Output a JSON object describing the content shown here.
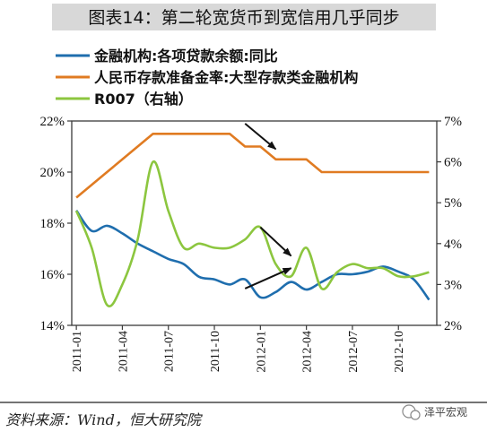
{
  "figure_title": "图表14：第二轮宽货币到宽信用几乎同步",
  "source": "资料来源：Wind，恒大研究院",
  "watermark": "泽平宏观",
  "colors": {
    "loan_growth": "#1f6eae",
    "rrr": "#e07b22",
    "r007": "#8cc63f",
    "title_bar": "#d8d8d8",
    "frame": "#3a3a3a"
  },
  "chart_data": {
    "type": "line",
    "legend": [
      "金融机构:各项贷款余额:同比",
      "人民币存款准备金率:大型存款类金融机构",
      "R007（右轴）"
    ],
    "legend_placement": "top",
    "x_start": "2011-01",
    "x_end": "2012-12",
    "x_ticks": [
      "2011-01",
      "2011-04",
      "2011-07",
      "2011-10",
      "2012-01",
      "2012-04",
      "2012-07",
      "2012-10"
    ],
    "y_left": {
      "lim": [
        14,
        22
      ],
      "ticks": [
        "14%",
        "16%",
        "18%",
        "20%",
        "22%"
      ]
    },
    "y_right": {
      "lim": [
        2,
        7
      ],
      "ticks": [
        "2%",
        "3%",
        "4%",
        "5%",
        "6%",
        "7%"
      ]
    },
    "grid": false,
    "series": [
      {
        "name": "金融机构:各项贷款余额:同比",
        "axis": "left",
        "x": [
          "2011-01",
          "2011-02",
          "2011-03",
          "2011-04",
          "2011-05",
          "2011-06",
          "2011-07",
          "2011-08",
          "2011-09",
          "2011-10",
          "2011-11",
          "2011-12",
          "2012-01",
          "2012-02",
          "2012-03",
          "2012-04",
          "2012-05",
          "2012-06",
          "2012-07",
          "2012-08",
          "2012-09",
          "2012-10",
          "2012-11",
          "2012-12"
        ],
        "y": [
          18.5,
          17.7,
          17.9,
          17.6,
          17.2,
          16.9,
          16.6,
          16.4,
          15.9,
          15.8,
          15.6,
          15.8,
          15.1,
          15.3,
          15.7,
          15.4,
          15.7,
          16.0,
          16.0,
          16.1,
          16.3,
          16.1,
          15.8,
          15.0
        ]
      },
      {
        "name": "人民币存款准备金率:大型存款类金融机构",
        "axis": "left",
        "x": [
          "2011-01",
          "2011-02",
          "2011-03",
          "2011-04",
          "2011-05",
          "2011-06",
          "2011-07",
          "2011-08",
          "2011-09",
          "2011-10",
          "2011-11",
          "2011-12",
          "2012-01",
          "2012-02",
          "2012-03",
          "2012-04",
          "2012-05",
          "2012-06",
          "2012-07",
          "2012-08",
          "2012-09",
          "2012-10",
          "2012-11",
          "2012-12"
        ],
        "y": [
          19.0,
          19.5,
          20.0,
          20.5,
          21.0,
          21.5,
          21.5,
          21.5,
          21.5,
          21.5,
          21.5,
          21.0,
          21.0,
          20.5,
          20.5,
          20.5,
          20.0,
          20.0,
          20.0,
          20.0,
          20.0,
          20.0,
          20.0,
          20.0
        ]
      },
      {
        "name": "R007（右轴）",
        "axis": "right",
        "x": [
          "2011-01",
          "2011-02",
          "2011-03",
          "2011-04",
          "2011-05",
          "2011-06",
          "2011-07",
          "2011-08",
          "2011-09",
          "2011-10",
          "2011-11",
          "2011-12",
          "2012-01",
          "2012-02",
          "2012-03",
          "2012-04",
          "2012-05",
          "2012-06",
          "2012-07",
          "2012-08",
          "2012-09",
          "2012-10",
          "2012-11",
          "2012-12"
        ],
        "y": [
          4.8,
          3.9,
          2.5,
          3.0,
          4.1,
          6.0,
          4.8,
          3.9,
          4.0,
          3.9,
          3.9,
          4.1,
          4.4,
          3.5,
          3.2,
          3.9,
          2.9,
          3.3,
          3.5,
          3.4,
          3.4,
          3.2,
          3.2,
          3.3
        ]
      }
    ],
    "annotations": [
      {
        "type": "arrow",
        "from": [
          "2011-12",
          21.9
        ],
        "to": [
          "2012-02",
          20.9
        ],
        "axis": "left"
      },
      {
        "type": "arrow",
        "from": [
          "2012-01",
          4.4
        ],
        "to": [
          "2012-03",
          3.7
        ],
        "axis": "right"
      },
      {
        "type": "arrow",
        "from": [
          "2011-12",
          2.9
        ],
        "to": [
          "2012-03",
          3.4
        ],
        "axis": "right"
      }
    ]
  }
}
